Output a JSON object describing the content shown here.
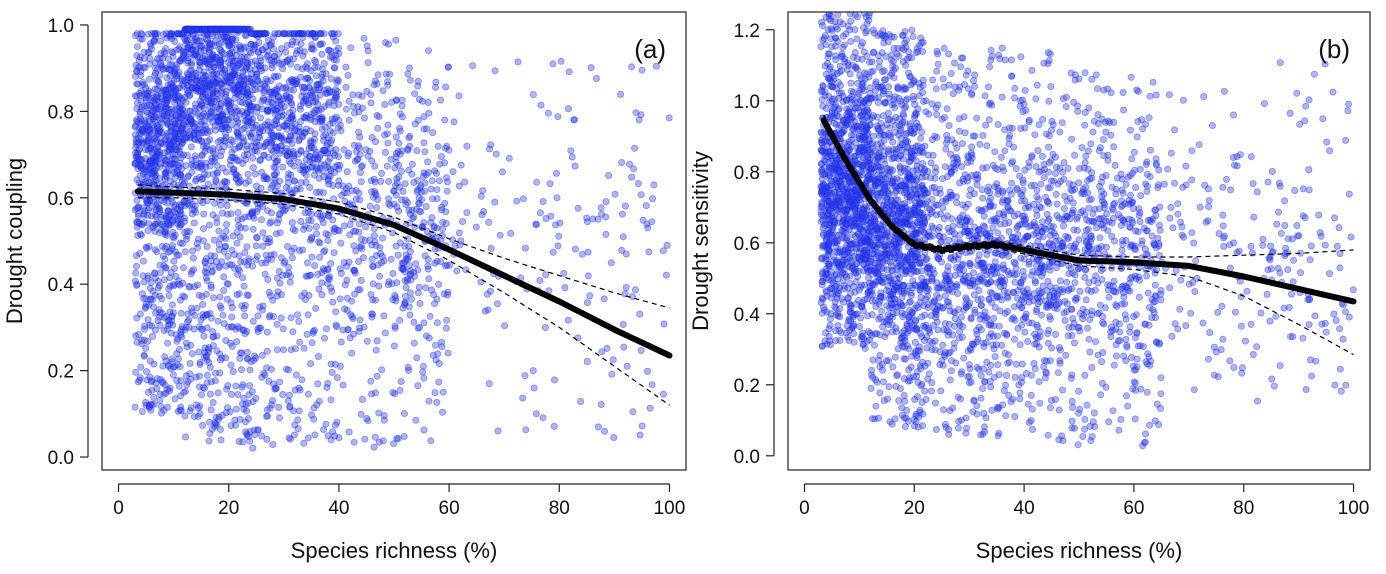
{
  "chart_data": [
    {
      "type": "scatter",
      "panel_label": "(a)",
      "xlabel": "Species richness (%)",
      "ylabel": "Drought coupling",
      "xlim": [
        -3,
        103
      ],
      "ylim": [
        -0.03,
        1.03
      ],
      "x_ticks": [
        "0",
        "20",
        "40",
        "60",
        "80",
        "100"
      ],
      "x_tick_values": [
        0,
        20,
        40,
        60,
        80,
        100
      ],
      "y_ticks": [
        "0.0",
        "0.2",
        "0.4",
        "0.6",
        "0.8",
        "1.0"
      ],
      "y_tick_values": [
        0,
        0.2,
        0.4,
        0.6,
        0.8,
        1.0
      ],
      "point_color": "#2b3cf5",
      "scatter_clusters": [
        {
          "x": [
            3,
            12
          ],
          "y": [
            0.1,
            0.98
          ],
          "n": 900,
          "y_mode": 0.75
        },
        {
          "x": [
            12,
            24
          ],
          "y": [
            0.03,
            0.99
          ],
          "n": 1100,
          "y_mode": 0.9
        },
        {
          "x": [
            24,
            40
          ],
          "y": [
            0.02,
            0.98
          ],
          "n": 900,
          "y_mode": 0.8
        },
        {
          "x": [
            40,
            60
          ],
          "y": [
            0.02,
            0.97
          ],
          "n": 500,
          "y_mode": 0.55
        },
        {
          "x": [
            60,
            100
          ],
          "y": [
            0.04,
            0.92
          ],
          "n": 180,
          "y_mode": 0.5
        }
      ],
      "fit": {
        "x": [
          3.5,
          10,
          20,
          30,
          40,
          50,
          60,
          70,
          80,
          90,
          100
        ],
        "y": [
          0.615,
          0.612,
          0.607,
          0.597,
          0.575,
          0.537,
          0.48,
          0.42,
          0.36,
          0.295,
          0.235
        ]
      },
      "ci_upper": {
        "x": [
          3.5,
          10,
          20,
          30,
          40,
          50,
          60,
          70,
          80,
          90,
          100
        ],
        "y": [
          0.63,
          0.625,
          0.62,
          0.61,
          0.59,
          0.555,
          0.505,
          0.46,
          0.42,
          0.38,
          0.345
        ]
      },
      "ci_lower": {
        "x": [
          3.5,
          10,
          20,
          30,
          40,
          50,
          60,
          70,
          80,
          90,
          100
        ],
        "y": [
          0.6,
          0.6,
          0.595,
          0.585,
          0.562,
          0.52,
          0.455,
          0.38,
          0.3,
          0.21,
          0.12
        ]
      }
    },
    {
      "type": "scatter",
      "panel_label": "(b)",
      "xlabel": "Species richness (%)",
      "ylabel": "Drought sensitivity",
      "xlim": [
        -3,
        103
      ],
      "ylim": [
        -0.04,
        1.25
      ],
      "x_ticks": [
        "0",
        "20",
        "40",
        "60",
        "80",
        "100"
      ],
      "x_tick_values": [
        0,
        20,
        40,
        60,
        80,
        100
      ],
      "y_ticks": [
        "0.0",
        "0.2",
        "0.4",
        "0.6",
        "0.8",
        "1.0",
        "1.2"
      ],
      "y_tick_values": [
        0,
        0.2,
        0.4,
        0.6,
        0.8,
        1.0,
        1.2
      ],
      "point_color": "#2b3cf5",
      "scatter_clusters": [
        {
          "x": [
            3,
            12
          ],
          "y": [
            0.3,
            1.25
          ],
          "n": 1100,
          "y_mode": 0.75
        },
        {
          "x": [
            12,
            22
          ],
          "y": [
            0.08,
            1.2
          ],
          "n": 1000,
          "y_mode": 0.65
        },
        {
          "x": [
            22,
            45
          ],
          "y": [
            0.05,
            1.15
          ],
          "n": 1000,
          "y_mode": 0.55
        },
        {
          "x": [
            45,
            65
          ],
          "y": [
            0.02,
            1.08
          ],
          "n": 600,
          "y_mode": 0.55
        },
        {
          "x": [
            65,
            100
          ],
          "y": [
            0.15,
            1.12
          ],
          "n": 220,
          "y_mode": 0.55
        }
      ],
      "fit": {
        "x": [
          3.5,
          8,
          12,
          16,
          20,
          25,
          30,
          35,
          40,
          50,
          60,
          70,
          80,
          90,
          100
        ],
        "y": [
          0.945,
          0.82,
          0.72,
          0.645,
          0.595,
          0.58,
          0.59,
          0.595,
          0.58,
          0.55,
          0.545,
          0.535,
          0.505,
          0.47,
          0.435
        ]
      },
      "ci_upper": {
        "x": [
          3.5,
          8,
          12,
          16,
          20,
          25,
          30,
          35,
          40,
          50,
          60,
          70,
          80,
          90,
          100
        ],
        "y": [
          0.96,
          0.83,
          0.73,
          0.655,
          0.605,
          0.59,
          0.6,
          0.605,
          0.592,
          0.565,
          0.56,
          0.56,
          0.565,
          0.57,
          0.58
        ]
      },
      "ci_lower": {
        "x": [
          3.5,
          8,
          12,
          16,
          20,
          25,
          30,
          35,
          40,
          50,
          60,
          70,
          80,
          90,
          100
        ],
        "y": [
          0.93,
          0.81,
          0.71,
          0.635,
          0.585,
          0.57,
          0.58,
          0.585,
          0.568,
          0.535,
          0.525,
          0.505,
          0.45,
          0.37,
          0.285
        ]
      }
    }
  ]
}
